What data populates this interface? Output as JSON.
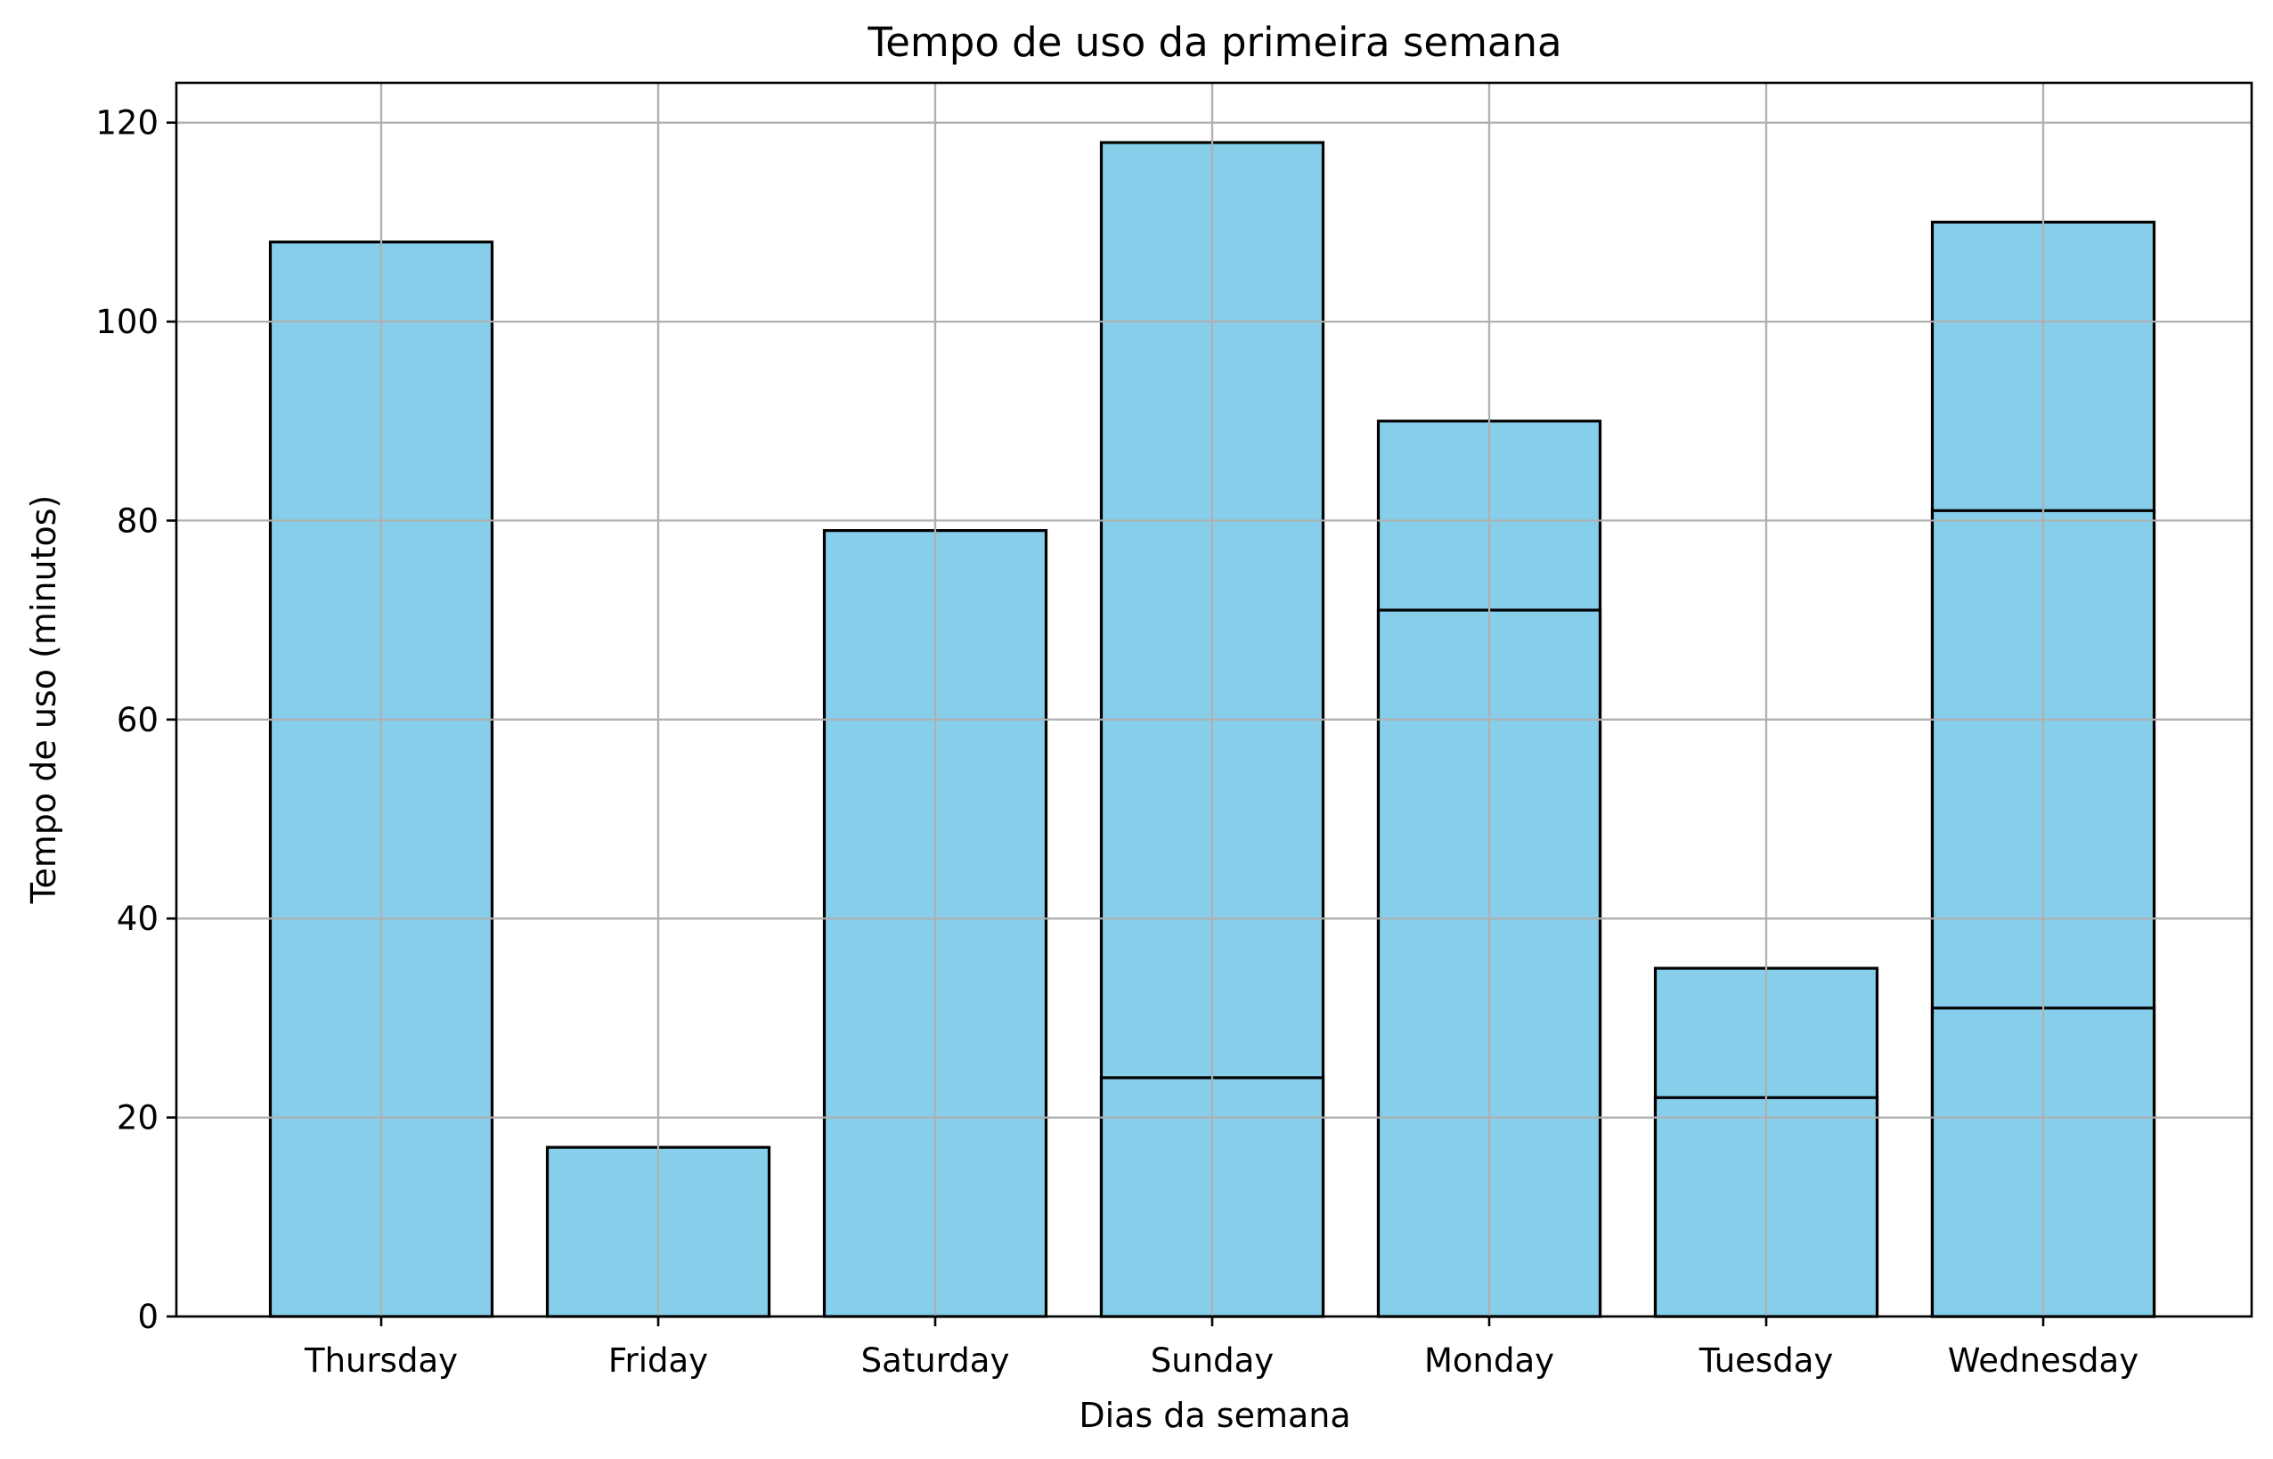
{
  "chart_data": {
    "type": "bar",
    "title": "Tempo de uso da primeira semana",
    "xlabel": "Dias da semana",
    "ylabel": "Tempo de uso (minutos)",
    "ylim": [
      0,
      124
    ],
    "yticks": [
      0,
      20,
      40,
      60,
      80,
      100,
      120
    ],
    "grid": true,
    "bar_color": "#87ceeb",
    "edge_color": "#000000",
    "categories": [
      "Thursday",
      "Friday",
      "Saturday",
      "Sunday",
      "Monday",
      "Tuesday",
      "Wednesday"
    ],
    "values": [
      108,
      17,
      79,
      118,
      90,
      35,
      110
    ],
    "overlapping_bars": [
      {
        "category": "Thursday",
        "value": 108
      },
      {
        "category": "Friday",
        "value": 17
      },
      {
        "category": "Saturday",
        "value": 79
      },
      {
        "category": "Sunday",
        "value": 118
      },
      {
        "category": "Sunday",
        "value": 24
      },
      {
        "category": "Monday",
        "value": 90
      },
      {
        "category": "Monday",
        "value": 71
      },
      {
        "category": "Tuesday",
        "value": 35
      },
      {
        "category": "Tuesday",
        "value": 22
      },
      {
        "category": "Wednesday",
        "value": 110
      },
      {
        "category": "Wednesday",
        "value": 81
      },
      {
        "category": "Wednesday",
        "value": 31
      }
    ]
  }
}
